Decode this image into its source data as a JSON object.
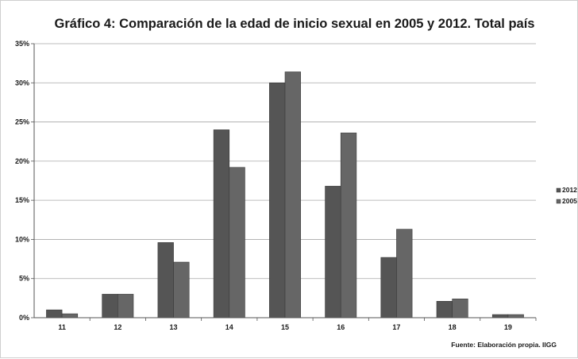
{
  "chart_data": {
    "type": "bar",
    "title": "Gráfico 4: Comparación de la edad de inicio sexual en 2005 y 2012. Total país",
    "categories": [
      "11",
      "12",
      "13",
      "14",
      "15",
      "16",
      "17",
      "18",
      "19"
    ],
    "series": [
      {
        "name": "2012",
        "values": [
          1.0,
          3.0,
          9.6,
          24.0,
          30.0,
          16.8,
          7.7,
          2.1,
          0.4
        ],
        "color": "#555555"
      },
      {
        "name": "2005",
        "values": [
          0.5,
          3.0,
          7.1,
          19.2,
          31.4,
          23.6,
          11.3,
          2.4,
          0.4
        ],
        "color": "#666666"
      }
    ],
    "y_ticks": [
      "0%",
      "5%",
      "10%",
      "15%",
      "20%",
      "25%",
      "30%",
      "35%"
    ],
    "ylim": [
      0,
      35
    ],
    "y_unit": "%",
    "grid": true,
    "legend_position": "right",
    "source": "Fuente: Elaboración propia. IIGG"
  }
}
